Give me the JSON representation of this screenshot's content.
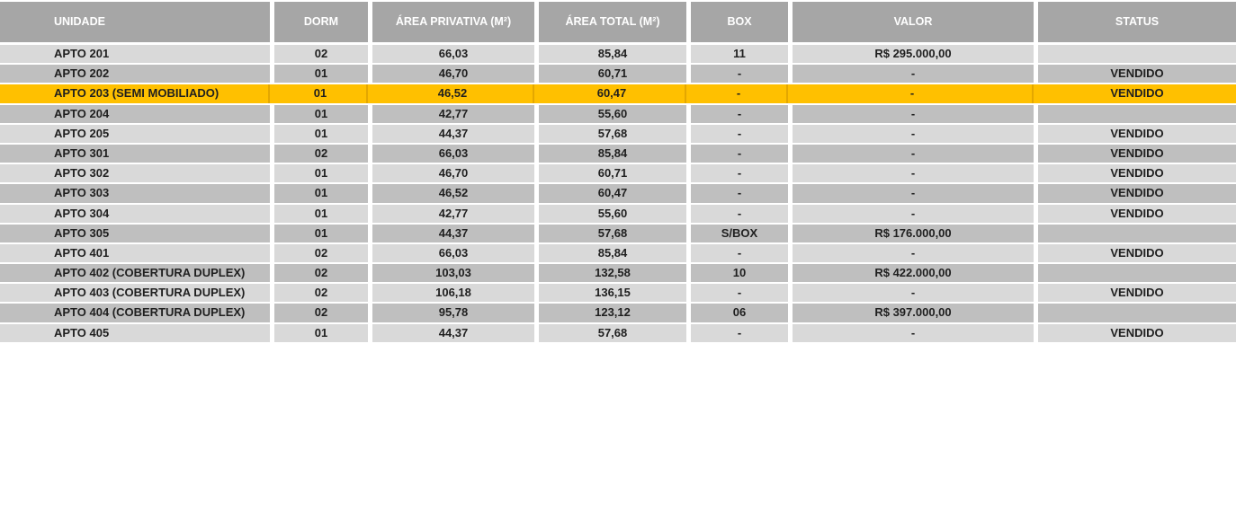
{
  "theme": {
    "header_bg": "#a6a6a6",
    "header_text": "#ffffff",
    "row_light_bg": "#d9d9d9",
    "row_dark_bg": "#bfbfbf",
    "highlight_bg": "#ffc000",
    "highlight_separator": "#e4a700",
    "body_text": "#1f1f1f",
    "page_bg": "#ffffff"
  },
  "table": {
    "columns": [
      {
        "key": "unidade",
        "label": "UNIDADE"
      },
      {
        "key": "dorm",
        "label": "DORM"
      },
      {
        "key": "area_privativa",
        "label": "ÁREA PRIVATIVA (M²)"
      },
      {
        "key": "area_total",
        "label": "ÁREA TOTAL (M²)"
      },
      {
        "key": "box",
        "label": "BOX"
      },
      {
        "key": "valor",
        "label": "VALOR"
      },
      {
        "key": "status",
        "label": "STATUS"
      }
    ],
    "rows": [
      {
        "unidade": "APTO 201",
        "dorm": "02",
        "area_privativa": "66,03",
        "area_total": "85,84",
        "box": "11",
        "valor": "R$ 295.000,00",
        "status": "",
        "highlight": false
      },
      {
        "unidade": "APTO 202",
        "dorm": "01",
        "area_privativa": "46,70",
        "area_total": "60,71",
        "box": "-",
        "valor": "-",
        "status": "VENDIDO",
        "highlight": false
      },
      {
        "unidade": "APTO 203 (SEMI MOBILIADO)",
        "dorm": "01",
        "area_privativa": "46,52",
        "area_total": "60,47",
        "box": "-",
        "valor": "-",
        "status": "VENDIDO",
        "highlight": true
      },
      {
        "unidade": "APTO 204",
        "dorm": "01",
        "area_privativa": "42,77",
        "area_total": "55,60",
        "box": "-",
        "valor": "-",
        "status": "",
        "highlight": false
      },
      {
        "unidade": "APTO 205",
        "dorm": "01",
        "area_privativa": "44,37",
        "area_total": "57,68",
        "box": "-",
        "valor": "-",
        "status": "VENDIDO",
        "highlight": false
      },
      {
        "unidade": "APTO 301",
        "dorm": "02",
        "area_privativa": "66,03",
        "area_total": "85,84",
        "box": "-",
        "valor": "-",
        "status": "VENDIDO",
        "highlight": false
      },
      {
        "unidade": "APTO 302",
        "dorm": "01",
        "area_privativa": "46,70",
        "area_total": "60,71",
        "box": "-",
        "valor": "-",
        "status": "VENDIDO",
        "highlight": false
      },
      {
        "unidade": "APTO 303",
        "dorm": "01",
        "area_privativa": "46,52",
        "area_total": "60,47",
        "box": "-",
        "valor": "-",
        "status": "VENDIDO",
        "highlight": false
      },
      {
        "unidade": "APTO 304",
        "dorm": "01",
        "area_privativa": "42,77",
        "area_total": "55,60",
        "box": "-",
        "valor": "-",
        "status": "VENDIDO",
        "highlight": false
      },
      {
        "unidade": "APTO 305",
        "dorm": "01",
        "area_privativa": "44,37",
        "area_total": "57,68",
        "box": "S/BOX",
        "valor": "R$ 176.000,00",
        "status": "",
        "highlight": false
      },
      {
        "unidade": "APTO 401",
        "dorm": "02",
        "area_privativa": "66,03",
        "area_total": "85,84",
        "box": "-",
        "valor": "-",
        "status": "VENDIDO",
        "highlight": false
      },
      {
        "unidade": "APTO 402 (COBERTURA DUPLEX)",
        "dorm": "02",
        "area_privativa": "103,03",
        "area_total": "132,58",
        "box": "10",
        "valor": "R$ 422.000,00",
        "status": "",
        "highlight": false
      },
      {
        "unidade": "APTO 403 (COBERTURA DUPLEX)",
        "dorm": "02",
        "area_privativa": "106,18",
        "area_total": "136,15",
        "box": "-",
        "valor": "-",
        "status": "VENDIDO",
        "highlight": false
      },
      {
        "unidade": "APTO 404 (COBERTURA DUPLEX)",
        "dorm": "02",
        "area_privativa": "95,78",
        "area_total": "123,12",
        "box": "06",
        "valor": "R$ 397.000,00",
        "status": "",
        "highlight": false
      },
      {
        "unidade": "APTO 405",
        "dorm": "01",
        "area_privativa": "44,37",
        "area_total": "57,68",
        "box": "-",
        "valor": "-",
        "status": "VENDIDO",
        "highlight": false
      }
    ]
  },
  "chart_data": {
    "type": "table",
    "title": "",
    "columns": [
      "UNIDADE",
      "DORM",
      "ÁREA PRIVATIVA (M²)",
      "ÁREA TOTAL (M²)",
      "BOX",
      "VALOR",
      "STATUS"
    ],
    "rows": [
      [
        "APTO 201",
        "02",
        "66,03",
        "85,84",
        "11",
        "R$ 295.000,00",
        ""
      ],
      [
        "APTO 202",
        "01",
        "46,70",
        "60,71",
        "-",
        "-",
        "VENDIDO"
      ],
      [
        "APTO 203 (SEMI MOBILIADO)",
        "01",
        "46,52",
        "60,47",
        "-",
        "-",
        "VENDIDO"
      ],
      [
        "APTO 204",
        "01",
        "42,77",
        "55,60",
        "-",
        "-",
        ""
      ],
      [
        "APTO 205",
        "01",
        "44,37",
        "57,68",
        "-",
        "-",
        "VENDIDO"
      ],
      [
        "APTO 301",
        "02",
        "66,03",
        "85,84",
        "-",
        "-",
        "VENDIDO"
      ],
      [
        "APTO 302",
        "01",
        "46,70",
        "60,71",
        "-",
        "-",
        "VENDIDO"
      ],
      [
        "APTO 303",
        "01",
        "46,52",
        "60,47",
        "-",
        "-",
        "VENDIDO"
      ],
      [
        "APTO 304",
        "01",
        "42,77",
        "55,60",
        "-",
        "-",
        "VENDIDO"
      ],
      [
        "APTO 305",
        "01",
        "44,37",
        "57,68",
        "S/BOX",
        "R$ 176.000,00",
        ""
      ],
      [
        "APTO 401",
        "02",
        "66,03",
        "85,84",
        "-",
        "-",
        "VENDIDO"
      ],
      [
        "APTO 402 (COBERTURA DUPLEX)",
        "02",
        "103,03",
        "132,58",
        "10",
        "R$ 422.000,00",
        ""
      ],
      [
        "APTO 403 (COBERTURA DUPLEX)",
        "02",
        "106,18",
        "136,15",
        "-",
        "-",
        "VENDIDO"
      ],
      [
        "APTO 404 (COBERTURA DUPLEX)",
        "02",
        "95,78",
        "123,12",
        "06",
        "R$ 397.000,00",
        ""
      ],
      [
        "APTO 405",
        "01",
        "44,37",
        "57,68",
        "-",
        "-",
        "VENDIDO"
      ]
    ],
    "highlighted_row": "APTO 203 (SEMI MOBILIADO)",
    "highlight_color": "#ffc000"
  }
}
